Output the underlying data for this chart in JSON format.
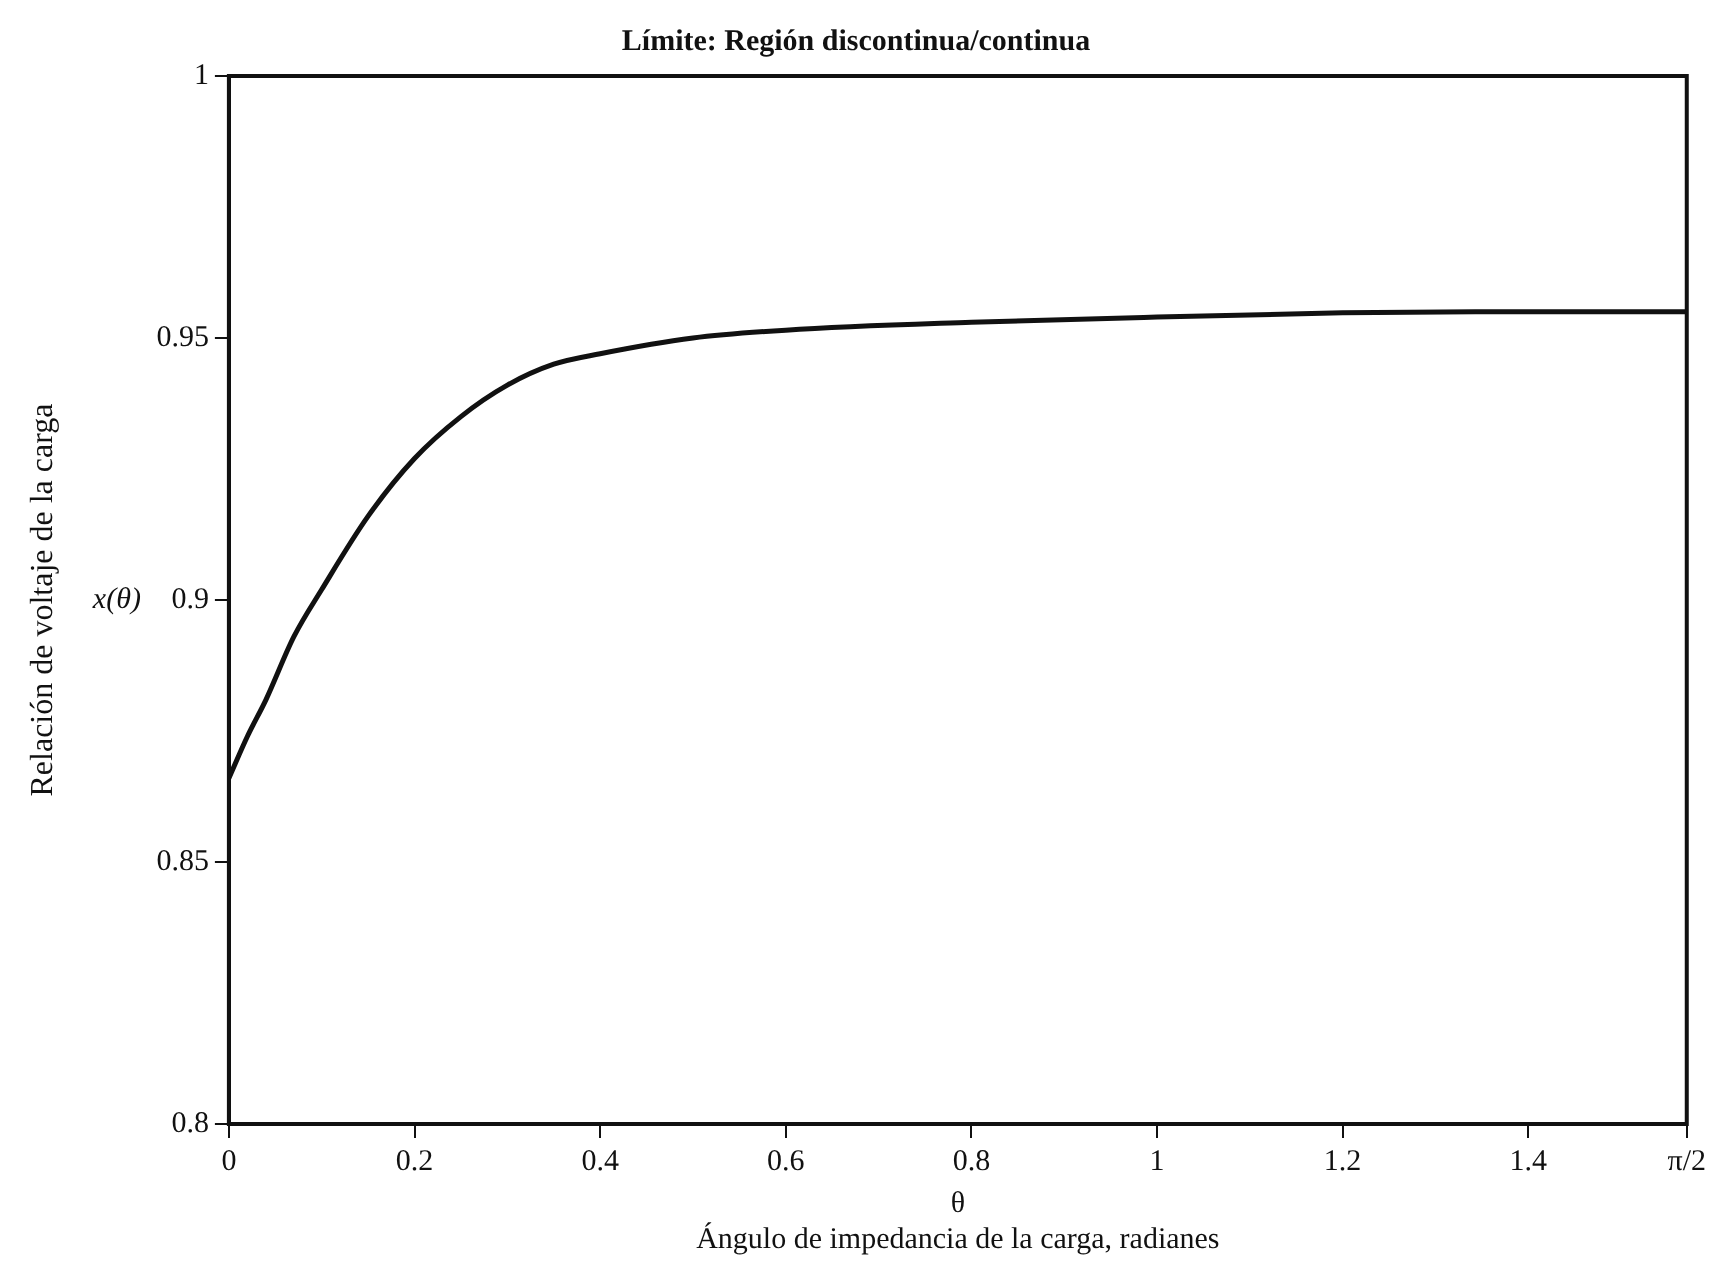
{
  "chart_data": {
    "type": "line",
    "title": "Límite: Región discontinua/continua",
    "xlabel": "θ\nÁngulo de impedancia de la carga, radianes",
    "ylabel": "Relación de voltaje de la carga",
    "annotations": [
      "x(θ)"
    ],
    "x": [
      0,
      0.02,
      0.04,
      0.07,
      0.1,
      0.15,
      0.2,
      0.25,
      0.3,
      0.35,
      0.4,
      0.5,
      0.6,
      0.8,
      1.0,
      1.2,
      1.4,
      1.5708
    ],
    "series": [
      {
        "color": "#111111",
        "values": [
          0.866,
          0.874,
          0.881,
          0.893,
          0.902,
          0.916,
          0.927,
          0.935,
          0.941,
          0.945,
          0.947,
          0.95,
          0.9515,
          0.953,
          0.954,
          0.9548,
          0.955,
          0.955
        ]
      }
    ],
    "xlim": [
      0,
      1.5708
    ],
    "xticks": [
      0,
      0.2,
      0.4,
      0.6,
      0.8,
      1,
      1.2,
      1.4,
      {
        "value": 1.5708,
        "label": "π/2"
      }
    ],
    "ylim": [
      0.8,
      1
    ],
    "yticks": [
      0.8,
      0.85,
      0.9,
      0.95,
      1
    ],
    "grid": false,
    "legend": false,
    "marker": "none",
    "line_style": "solid"
  }
}
